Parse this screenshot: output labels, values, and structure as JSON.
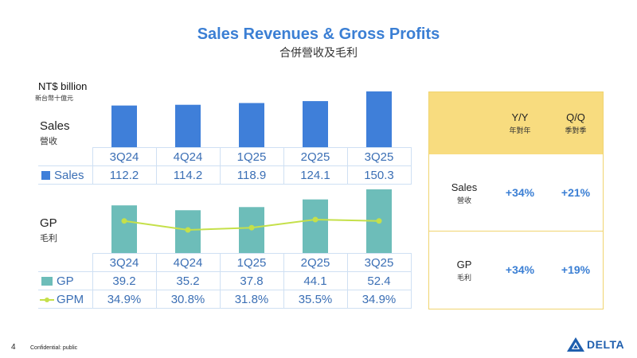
{
  "page": {
    "number": "4",
    "confidential": "Confidential: public"
  },
  "header": {
    "title": "Sales Revenues & Gross Profits",
    "subtitle": "合併營收及毛利"
  },
  "unit": {
    "en": "NT$ billion",
    "zh": "新台幣十億元"
  },
  "colors": {
    "sales": "#3f7fd9",
    "gp": "#6dbdb9",
    "gpm": "#c5e04a",
    "accent": "#3b7fd4",
    "panel_head": "#f8dc7f"
  },
  "sales_section": {
    "label_en": "Sales",
    "label_zh": "營收",
    "legend": "Sales"
  },
  "gp_section": {
    "label_en": "GP",
    "label_zh": "毛利",
    "legend_gp": "GP",
    "legend_gpm": "GPM"
  },
  "chart_data": [
    {
      "type": "bar",
      "title": "Sales",
      "ylabel": "NT$ billion",
      "categories": [
        "3Q24",
        "4Q24",
        "1Q25",
        "2Q25",
        "3Q25"
      ],
      "category_labels": [
        "3Q24",
        "4Q24",
        "1Q25",
        "2Q25",
        "3Q25"
      ],
      "series": [
        {
          "name": "Sales",
          "values": [
            112.2,
            114.2,
            118.9,
            124.1,
            150.3
          ],
          "labels": [
            "112.2",
            "114.2",
            "118.9",
            "124.1",
            "150.3"
          ]
        }
      ]
    },
    {
      "type": "bar",
      "title": "GP",
      "ylabel": "NT$ billion",
      "categories": [
        "3Q24",
        "4Q24",
        "1Q25",
        "2Q25",
        "3Q25"
      ],
      "category_labels": [
        "3Q24",
        "4Q24",
        "1Q25",
        "2Q25",
        "3Q25"
      ],
      "series": [
        {
          "name": "GP",
          "values": [
            39.2,
            35.2,
            37.8,
            44.1,
            52.4
          ],
          "labels": [
            "39.2",
            "35.2",
            "37.8",
            "44.1",
            "52.4"
          ]
        },
        {
          "name": "GPM",
          "type": "line",
          "unit": "%",
          "values": [
            34.9,
            30.8,
            31.8,
            35.5,
            34.9
          ],
          "labels": [
            "34.9%",
            "30.8%",
            "31.8%",
            "35.5%",
            "34.9%"
          ]
        }
      ]
    }
  ],
  "growth_table": {
    "headers": [
      {
        "en": "Y/Y",
        "zh": "年對年"
      },
      {
        "en": "Q/Q",
        "zh": "季對季"
      }
    ],
    "rows": [
      {
        "en": "Sales",
        "zh": "營收",
        "yy": "+34%",
        "qq": "+21%"
      },
      {
        "en": "GP",
        "zh": "毛利",
        "yy": "+34%",
        "qq": "+19%"
      }
    ]
  },
  "logo": {
    "text": "DELTA"
  }
}
